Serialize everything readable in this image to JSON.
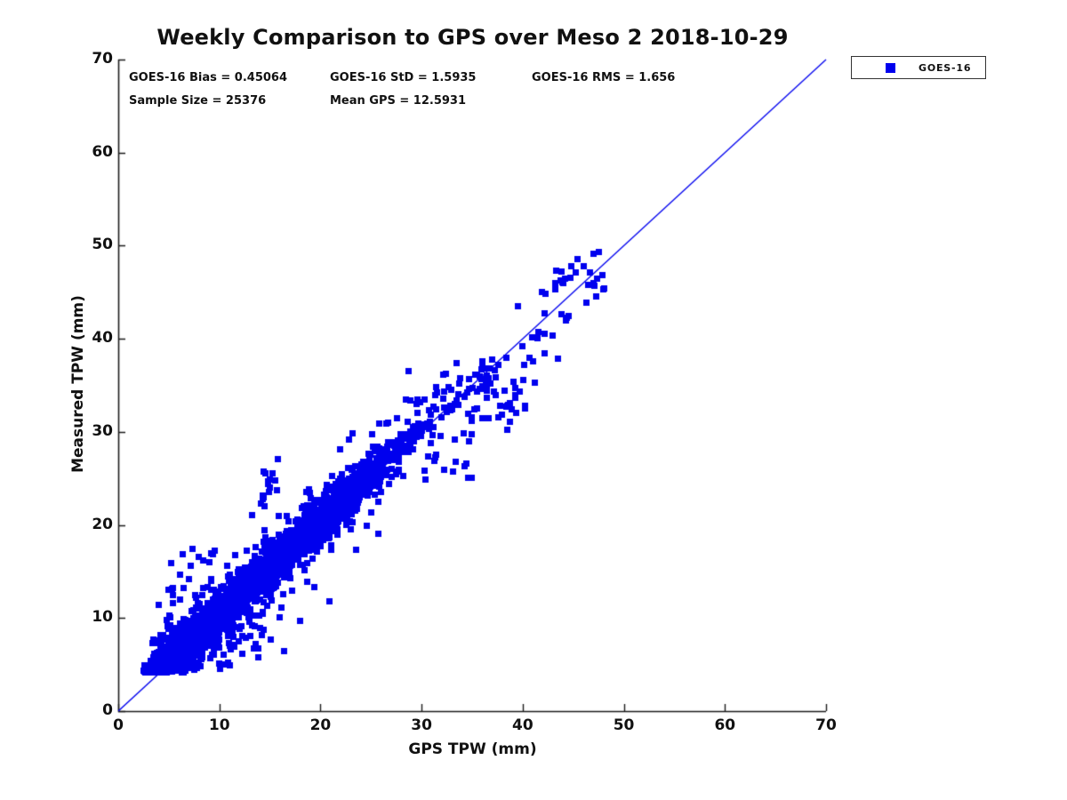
{
  "title": "Weekly Comparison to GPS over Meso 2 2018-10-29",
  "annotations": {
    "row1": [
      "GOES-16 Bias = 0.45064",
      "GOES-16 StD = 1.5935",
      "GOES-16 RMS = 1.656"
    ],
    "row2": [
      "Sample Size = 25376",
      "Mean GPS = 12.5931"
    ]
  },
  "legend": {
    "label": "GOES-16",
    "marker": "filled-square",
    "marker_color": "#0000EE"
  },
  "chart_data": {
    "type": "scatter",
    "title": "Weekly Comparison to GPS over Meso 2 2018-10-29",
    "xlabel": "GPS TPW (mm)",
    "ylabel": "Measured TPW (mm)",
    "xlim": [
      0,
      70
    ],
    "ylim": [
      0,
      70
    ],
    "xticks": [
      0,
      10,
      20,
      30,
      40,
      50,
      60,
      70
    ],
    "yticks": [
      0,
      10,
      20,
      30,
      40,
      50,
      60,
      70
    ],
    "grid": false,
    "legend_position": "outside-top-right",
    "axis_color": "#1b1b1b",
    "series": [
      {
        "name": "GOES-16",
        "marker": "filled-square",
        "color": "#0000EE",
        "marker_px": 7,
        "n_points_actual": 25376
      }
    ],
    "reference_line": {
      "from": [
        0,
        0
      ],
      "to": [
        70,
        70
      ],
      "color": "#0000EE",
      "meaning": "1:1 line"
    },
    "stats": {
      "bias": 0.45064,
      "std": 1.5935,
      "rms": 1.656,
      "sample_size": 25376,
      "mean_gps": 12.5931
    },
    "scatter_model": {
      "comment": "25376 pts overplotted; dense diagonal cloud x=2.5-33 along y=x+bias, sparse tail to x=48,y=49",
      "seed": 20181029,
      "core": {
        "n": 3000,
        "bias": 0.45,
        "x_hist": [
          [
            2.5,
            4,
            5
          ],
          [
            4,
            6,
            14
          ],
          [
            6,
            8,
            14
          ],
          [
            8,
            10,
            13
          ],
          [
            10,
            12,
            11
          ],
          [
            12,
            14,
            10
          ],
          [
            14,
            16,
            9.5
          ],
          [
            16,
            18,
            9
          ],
          [
            18,
            20,
            8.5
          ],
          [
            20,
            22,
            8
          ],
          [
            22,
            24,
            6.5
          ],
          [
            24,
            26,
            4.5
          ],
          [
            26,
            28,
            2.6
          ],
          [
            28,
            30,
            1.4
          ],
          [
            30,
            32,
            0.6
          ],
          [
            32,
            34,
            0.2
          ]
        ],
        "noise_mix": [
          {
            "w": 0.77,
            "sd": 1.05
          },
          {
            "w": 0.19,
            "sd": 2.0
          },
          {
            "w": 0.04,
            "sd": 3.5
          }
        ],
        "y_floor": 4.2
      },
      "clusters": [
        [
          36.4,
          35.6,
          1.0,
          1.5,
          30
        ],
        [
          34.9,
          34.2,
          0.7,
          0.8,
          8
        ],
        [
          38.8,
          32.8,
          1.0,
          1.0,
          10
        ],
        [
          37.8,
          31.4,
          0.8,
          0.8,
          6
        ],
        [
          33.6,
          30.6,
          1.0,
          1.0,
          8
        ],
        [
          30.9,
          28.4,
          0.9,
          1.1,
          10
        ],
        [
          32.9,
          32.9,
          0.6,
          0.7,
          6
        ],
        [
          31.9,
          34.0,
          0.5,
          1.0,
          6
        ],
        [
          29.1,
          33.3,
          0.7,
          0.4,
          4
        ],
        [
          33.8,
          26.2,
          0.7,
          0.6,
          5
        ],
        [
          12.5,
          8.0,
          1.8,
          1.1,
          22
        ],
        [
          15.2,
          25.3,
          0.5,
          0.9,
          9
        ],
        [
          14.4,
          23.2,
          0.5,
          0.7,
          6
        ],
        [
          7.8,
          16.4,
          1.0,
          1.1,
          12
        ],
        [
          5.5,
          12.6,
          0.7,
          0.9,
          8
        ],
        [
          44.3,
          46.6,
          0.9,
          1.1,
          9
        ],
        [
          47.7,
          46.9,
          0.5,
          1.8,
          8
        ],
        [
          43.9,
          42.4,
          0.5,
          0.5,
          3
        ],
        [
          41.8,
          40.3,
          0.7,
          0.9,
          5
        ],
        [
          40.4,
          37.3,
          0.7,
          0.7,
          4
        ],
        [
          39.3,
          35.0,
          0.6,
          0.9,
          4
        ]
      ],
      "extra_points": [
        [
          39.5,
          43.5
        ],
        [
          42.2,
          44.9
        ],
        [
          47.0,
          49.2
        ],
        [
          44.8,
          47.8
        ],
        [
          43.8,
          47.3
        ],
        [
          41.9,
          45.1
        ],
        [
          43.9,
          46.1
        ],
        [
          43.2,
          46.0
        ],
        [
          46.4,
          45.8
        ],
        [
          47.9,
          45.4
        ],
        [
          46.3,
          43.9
        ],
        [
          42.1,
          42.8
        ],
        [
          44.3,
          42.3
        ],
        [
          41.5,
          40.8
        ],
        [
          40.1,
          37.2
        ],
        [
          38.3,
          38.0
        ],
        [
          42.1,
          38.5
        ],
        [
          39.2,
          33.7
        ],
        [
          38.5,
          32.9
        ],
        [
          32.1,
          36.2
        ],
        [
          28.4,
          33.5
        ],
        [
          29.8,
          33.2
        ],
        [
          20.8,
          11.8
        ],
        [
          17.9,
          9.7
        ],
        [
          10.8,
          5.3
        ],
        [
          33.1,
          25.8
        ],
        [
          34.4,
          26.6
        ],
        [
          30.3,
          24.9
        ],
        [
          26.5,
          30.9
        ],
        [
          25.1,
          29.8
        ]
      ]
    }
  }
}
